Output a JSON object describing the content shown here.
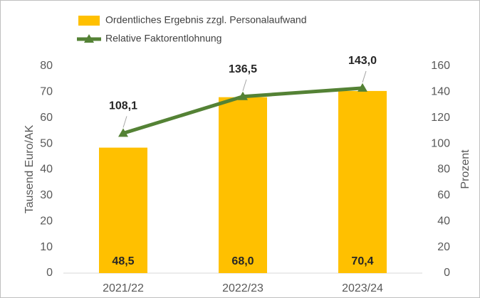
{
  "chart_data": {
    "type": "bar",
    "categories": [
      "2021/22",
      "2022/23",
      "2023/24"
    ],
    "series": [
      {
        "name": "Ordentliches Ergebnis zzgl. Personalaufwand",
        "type": "bar",
        "color": "#ffc000",
        "values": [
          48.5,
          68.0,
          70.4
        ],
        "value_labels": [
          "48,5",
          "68,0",
          "70,4"
        ]
      },
      {
        "name": "Relative Faktorentlohnung",
        "type": "line",
        "axis": "y2",
        "color": "#548235",
        "values": [
          108.1,
          136.5,
          143.0
        ],
        "value_labels": [
          "108,1",
          "136,5",
          "143,0"
        ]
      }
    ],
    "ylabel": "Tausend Euro/AK",
    "y2label": "Prozent",
    "ylim": [
      0,
      80
    ],
    "yticks": [
      0,
      10,
      20,
      30,
      40,
      50,
      60,
      70,
      80
    ],
    "y2lim": [
      0,
      160
    ],
    "y2ticks": [
      0,
      20,
      40,
      60,
      80,
      100,
      120,
      140,
      160
    ],
    "grid": false,
    "legend": "top"
  }
}
